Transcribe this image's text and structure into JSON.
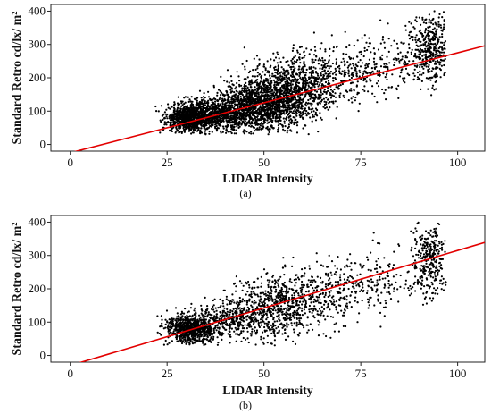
{
  "chart_data": [
    {
      "type": "scatter",
      "caption": "(a)",
      "xlabel": "LIDAR Intensity",
      "ylabel": "Standard Retro cd/lx/ m²",
      "xticks": [
        "0",
        "25",
        "50",
        "75",
        "100"
      ],
      "yticks": [
        "0",
        "100",
        "200",
        "300",
        "400"
      ],
      "xlim": [
        -5,
        107
      ],
      "ylim": [
        -20,
        420
      ],
      "grid": false,
      "series": [
        {
          "color": "#000000",
          "cloud": [
            {
              "x": 31,
              "y": 80,
              "sx": 3.0,
              "sy": 22,
              "n": 1000
            },
            {
              "x": 40,
              "y": 95,
              "sx": 4.5,
              "sy": 28,
              "n": 700
            },
            {
              "x": 49,
              "y": 120,
              "sx": 5.0,
              "sy": 42,
              "n": 1000
            },
            {
              "x": 55,
              "y": 150,
              "sx": 5.0,
              "sy": 48,
              "n": 700
            },
            {
              "x": 62,
              "y": 175,
              "sx": 5.0,
              "sy": 50,
              "n": 350
            },
            {
              "x": 72,
              "y": 215,
              "sx": 6.0,
              "sy": 45,
              "n": 250
            },
            {
              "x": 84,
              "y": 245,
              "sx": 5.0,
              "sy": 45,
              "n": 120
            },
            {
              "x": 93,
              "y": 285,
              "sx": 2.2,
              "sy": 55,
              "n": 380
            }
          ],
          "range_x": [
            22,
            97
          ],
          "range_y": [
            30,
            400
          ]
        }
      ],
      "trend": {
        "color": "#e30000",
        "slope": 3.0,
        "intercept": -25
      }
    },
    {
      "type": "scatter",
      "caption": "(b)",
      "xlabel": "LIDAR Intensity",
      "ylabel": "Standard Retro cd/lx/ m²",
      "xticks": [
        "0",
        "25",
        "50",
        "75",
        "100"
      ],
      "yticks": [
        "0",
        "100",
        "200",
        "300",
        "400"
      ],
      "xlim": [
        -5,
        107
      ],
      "ylim": [
        -20,
        420
      ],
      "grid": false,
      "series": [
        {
          "color": "#000000",
          "cloud": [
            {
              "x": 31,
              "y": 80,
              "sx": 3.0,
              "sy": 22,
              "n": 800
            },
            {
              "x": 41,
              "y": 105,
              "sx": 4.5,
              "sy": 30,
              "n": 350
            },
            {
              "x": 51,
              "y": 135,
              "sx": 5.0,
              "sy": 48,
              "n": 420
            },
            {
              "x": 58,
              "y": 165,
              "sx": 5.0,
              "sy": 50,
              "n": 300
            },
            {
              "x": 68,
              "y": 200,
              "sx": 5.5,
              "sy": 48,
              "n": 220
            },
            {
              "x": 80,
              "y": 230,
              "sx": 5.5,
              "sy": 45,
              "n": 130
            },
            {
              "x": 93,
              "y": 290,
              "sx": 2.2,
              "sy": 55,
              "n": 320
            }
          ],
          "range_x": [
            22,
            97
          ],
          "range_y": [
            30,
            400
          ]
        }
      ],
      "trend": {
        "color": "#e30000",
        "slope": 3.45,
        "intercept": -30
      }
    }
  ]
}
